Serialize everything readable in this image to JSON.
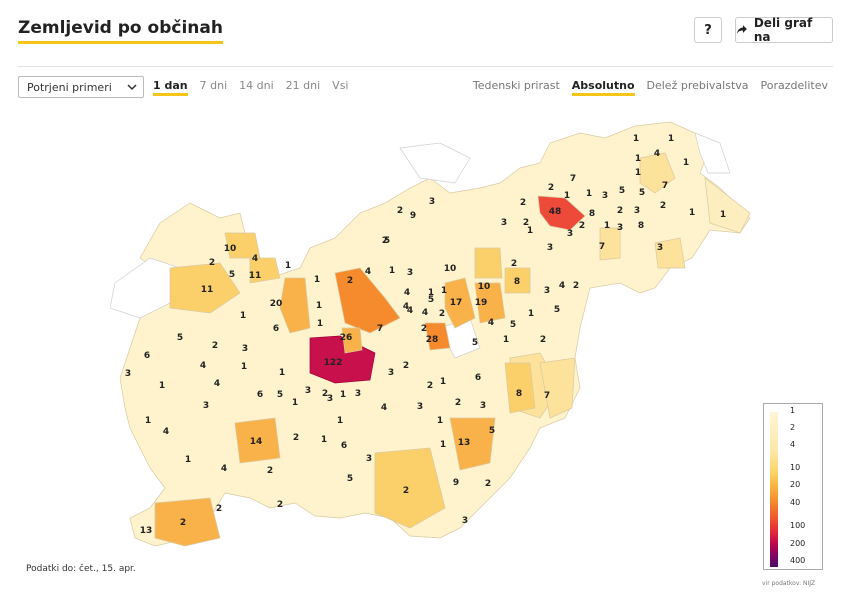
{
  "header": {
    "title": "Zemljevid po občinah",
    "help_label": "?",
    "share_label": "Deli graf na"
  },
  "controls": {
    "selected_metric": "Potrjeni primeri",
    "range_tabs": [
      "1 dan",
      "7 dni",
      "14 dni",
      "21 dni",
      "Vsi"
    ],
    "active_range": "1 dan",
    "mode_tabs": [
      "Tedenski prirast",
      "Absolutno",
      "Delež prebivalstva",
      "Porazdelitev"
    ],
    "active_mode": "Absolutno"
  },
  "map": {
    "region_labels": [
      "1",
      "1",
      "4",
      "1",
      "1",
      "1",
      "7",
      "2",
      "7",
      "5",
      "5",
      "1",
      "1",
      "3",
      "2",
      "48",
      "8",
      "2",
      "3",
      "1",
      "1",
      "2",
      "9",
      "3",
      "3",
      "2",
      "2",
      "2",
      "3",
      "1",
      "3",
      "8",
      "1",
      "7",
      "5",
      "3",
      "3",
      "10",
      "4",
      "1",
      "2",
      "2",
      "10",
      "5",
      "11",
      "1",
      "2",
      "4",
      "1",
      "3",
      "2",
      "11",
      "10",
      "8",
      "3",
      "4",
      "2",
      "4",
      "1",
      "20",
      "1",
      "1",
      "4",
      "5",
      "17",
      "19",
      "5",
      "1",
      "4",
      "4",
      "6",
      "1",
      "2",
      "2",
      "4",
      "5",
      "1",
      "5",
      "7",
      "28",
      "26",
      "5",
      "1",
      "2",
      "2",
      "3",
      "4",
      "122",
      "2",
      "6",
      "1",
      "3",
      "3",
      "1",
      "1",
      "4",
      "6",
      "1",
      "3",
      "2",
      "8",
      "7",
      "3",
      "6",
      "5",
      "1",
      "3",
      "1",
      "2",
      "3",
      "4",
      "3",
      "2",
      "3",
      "1",
      "1",
      "4",
      "1",
      "14",
      "2",
      "1",
      "1",
      "13",
      "5",
      "3",
      "6",
      "1",
      "4",
      "2",
      "5",
      "2",
      "9",
      "2",
      "2",
      "2",
      "2",
      "3",
      "13",
      "4",
      "5"
    ]
  },
  "legend": {
    "ticks": [
      "1",
      "2",
      "4",
      "10",
      "20",
      "40",
      "100",
      "200",
      "400"
    ],
    "source": "vir podatkov: NIJZ"
  },
  "footer": {
    "date_label": "Podatki do: čet., 15. apr."
  },
  "colors": {
    "accent": "#f5c518",
    "c1": "#fff6d8",
    "c2": "#fdeec0",
    "c3": "#fde29c",
    "c4": "#fbd06a",
    "c5": "#f9b24a",
    "c6": "#f68b2e",
    "c7": "#ee4a3a",
    "c8": "#c8104c",
    "empty": "#ffffff"
  }
}
